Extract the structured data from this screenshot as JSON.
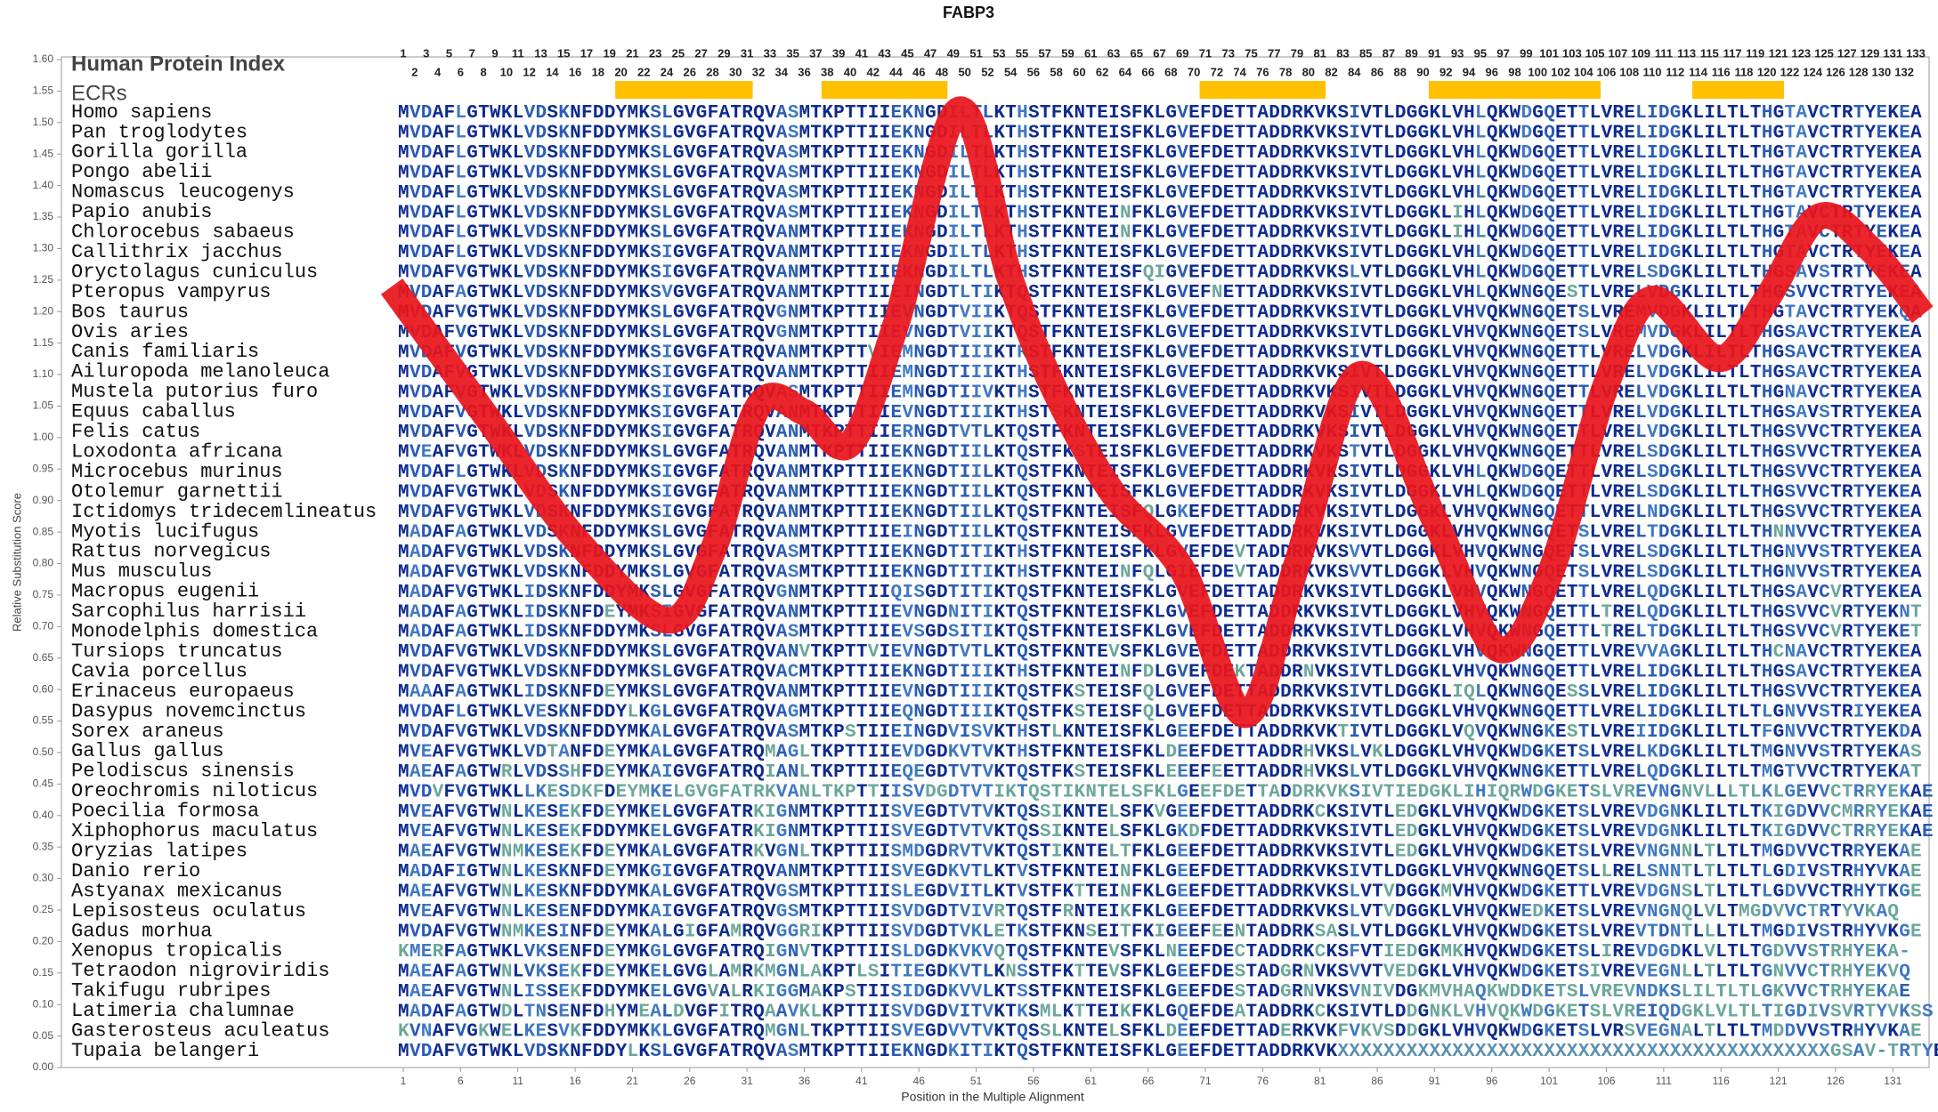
{
  "chart_data": {
    "type": "line",
    "title": "FABP3",
    "index_label": "Human Protein Index",
    "ecr_label": "ECRs",
    "xlabel": "Position in the Multiple Alignment",
    "ylabel": "Relative Substitution Score",
    "color": "#e8141c",
    "ecr_color": "#ffc000",
    "ylim": [
      0,
      1.6
    ],
    "yticks": [
      {
        "value": 0,
        "label": "0.00"
      },
      {
        "value": 0.05,
        "label": "0.05"
      },
      {
        "value": 0.1,
        "label": "0.10"
      },
      {
        "value": 0.15,
        "label": "0.15"
      },
      {
        "value": 0.2,
        "label": "0.20"
      },
      {
        "value": 0.25,
        "label": "0.25"
      },
      {
        "value": 0.3,
        "label": "0.30"
      },
      {
        "value": 0.35,
        "label": "0.35"
      },
      {
        "value": 0.4,
        "label": "0.40"
      },
      {
        "value": 0.45,
        "label": "0.45"
      },
      {
        "value": 0.5,
        "label": "0.50"
      },
      {
        "value": 0.55,
        "label": "0.55"
      },
      {
        "value": 0.6,
        "label": "0.60"
      },
      {
        "value": 0.65,
        "label": "0.65"
      },
      {
        "value": 0.7,
        "label": "0.70"
      },
      {
        "value": 0.75,
        "label": "0.75"
      },
      {
        "value": 0.8,
        "label": "0.80"
      },
      {
        "value": 0.85,
        "label": "0.85"
      },
      {
        "value": 0.9,
        "label": "0.90"
      },
      {
        "value": 0.95,
        "label": "0.95"
      },
      {
        "value": 1,
        "label": "1.00"
      },
      {
        "value": 1.05,
        "label": "1.05"
      },
      {
        "value": 1.1,
        "label": "1.10"
      },
      {
        "value": 1.15,
        "label": "1.15"
      },
      {
        "value": 1.2,
        "label": "1.20"
      },
      {
        "value": 1.25,
        "label": "1.25"
      },
      {
        "value": 1.3,
        "label": "1.30"
      },
      {
        "value": 1.35,
        "label": "1.35"
      },
      {
        "value": 1.4,
        "label": "1.40"
      },
      {
        "value": 1.45,
        "label": "1.45"
      },
      {
        "value": 1.5,
        "label": "1.50"
      },
      {
        "value": 1.55,
        "label": "1.55"
      },
      {
        "value": 1.6,
        "label": "1.60"
      }
    ],
    "xlim": [
      1,
      133
    ],
    "xticks": [
      1,
      6,
      11,
      16,
      21,
      26,
      31,
      36,
      41,
      46,
      51,
      56,
      61,
      66,
      71,
      76,
      81,
      86,
      91,
      96,
      101,
      106,
      111,
      116,
      121,
      126,
      131
    ],
    "columns": [
      1,
      2,
      3,
      4,
      5,
      6,
      7,
      8,
      9,
      10,
      11,
      12,
      13,
      14,
      15,
      16,
      17,
      18,
      19,
      20,
      21,
      22,
      23,
      24,
      25,
      26,
      27,
      28,
      29,
      30,
      31,
      32,
      33,
      34,
      35,
      36,
      37,
      38,
      39,
      40,
      41,
      42,
      43,
      44,
      45,
      46,
      47,
      48,
      49,
      50,
      51,
      52,
      53,
      54,
      55,
      56,
      57,
      58,
      59,
      60,
      61,
      62,
      63,
      64,
      65,
      66,
      67,
      68,
      69,
      70,
      71,
      72,
      73,
      74,
      75,
      76,
      77,
      78,
      79,
      80,
      81,
      82,
      83,
      84,
      85,
      86,
      87,
      88,
      89,
      90,
      91,
      92,
      93,
      94,
      95,
      96,
      97,
      98,
      99,
      100,
      101,
      102,
      103,
      104,
      105,
      106,
      107,
      108,
      109,
      110,
      111,
      112,
      113,
      114,
      115,
      116,
      117,
      118,
      119,
      120,
      121,
      122,
      123,
      124,
      125,
      126,
      127,
      128,
      129,
      130,
      131,
      132,
      133
    ],
    "ecrs": [
      {
        "start": 20,
        "end": 31
      },
      {
        "start": 38,
        "end": 48
      },
      {
        "start": 71,
        "end": 81
      },
      {
        "start": 91,
        "end": 105
      },
      {
        "start": 114,
        "end": 121
      }
    ],
    "x": [
      0,
      8,
      16,
      24,
      28,
      32,
      36,
      40,
      44,
      49.5,
      54,
      58,
      63,
      69,
      74.5,
      79,
      84.5,
      91,
      96.5,
      101,
      106,
      110,
      115.8,
      120,
      124.5,
      129,
      133.6
    ],
    "values": [
      1.24,
      1.04,
      0.84,
      0.71,
      0.82,
      1.05,
      1.04,
      0.99,
      1.18,
      1.52,
      1.25,
      1.07,
      0.91,
      0.79,
      0.56,
      0.8,
      1.1,
      0.87,
      0.665,
      0.78,
      1.085,
      1.22,
      1.125,
      1.22,
      1.35,
      1.3,
      1.195
    ],
    "species": [
      "Homo sapiens",
      "Pan troglodytes",
      "Gorilla gorilla",
      "Pongo abelii",
      "Nomascus leucogenys",
      "Papio anubis",
      "Chlorocebus sabaeus",
      "Callithrix jacchus",
      "Oryctolagus cuniculus",
      "Pteropus vampyrus",
      "Bos taurus",
      "Ovis aries",
      "Canis familiaris",
      "Ailuropoda melanoleuca",
      "Mustela putorius furo",
      "Equus caballus",
      "Felis catus",
      "Loxodonta africana",
      "Microcebus murinus",
      "Otolemur garnettii",
      "Ictidomys tridecemlineatus",
      "Myotis lucifugus",
      "Rattus norvegicus",
      "Mus musculus",
      "Macropus eugenii",
      "Sarcophilus harrisii",
      "Monodelphis domestica",
      "Tursiops truncatus",
      "Cavia porcellus",
      "Erinaceus europaeus",
      "Dasypus novemcinctus",
      "Sorex araneus",
      "Gallus gallus",
      "Pelodiscus sinensis",
      "Oreochromis niloticus",
      "Poecilia formosa",
      "Xiphophorus maculatus",
      "Oryzias latipes",
      "Danio rerio",
      "Astyanax mexicanus",
      "Lepisosteus oculatus",
      "Gadus morhua",
      "Xenopus tropicalis",
      "Tetraodon nigroviridis",
      "Takifugu rubripes",
      "Latimeria chalumnae",
      "Gasterosteus aculeatus",
      "Tupaia belangeri"
    ],
    "sequences": [
      "MVDAFLGTWKLVDSKNFDDYMKSLGVGFATRQVASMTKPTTIIEKNGDILTLKTHSTFKNTEISFKLGVEFDETTADDRKVKSIVTLDGGKLVHLQKWDGQETTLVRELIDGKLILTLTHGTAVCTRTYEKEA",
      "MVDAFLGTWKLVDSKNFDDYMKSLGVGFATRQVASMTKPTTIIEKNGDILTLKTHSTFKNTEISFKLGVEFDETTADDRKVKSIVTLDGGKLVHLQKWDGQETTLVRELIDGKLILTLTHGTAVCTRTYEKEA",
      "MVDAFLGTWKLVDSKNFDDYMKSLGVGFATRQVASMTKPTTIIEKNGDILTLKTHSTFKNTEISFKLGVEFDETTADDRKVKSIVTLDGGKLVHLQKWDGQETTLVRELIDGKLILTLTHGTAVCTRTYEKEA",
      "MVDAFLGTWKLVDSKNFDDYMKSLGVGFATRQVASMTKPTTIIEKNGDILTLKTHSTFKNTEISFKLGVEFDETTADDRKVKSIVTLDGGKLVHLQKWDGQETTLVRELIDGKLILTLTHGTAVCTRTYEKEA",
      "MVDAFLGTWKLVDSKNFDDYMKSLGVGFATRQVASMTKPTTIIEKNGDILTLKTHSTFKNTEISFKLGVEFDETTADDRKVKSIVTLDGGKLVHLQKWDGQETTLVRELIDGKLILTLTHGTAVCTRTYEKEA",
      "MVDAFLGTWKLVDSKNFDDYMKSLGVGFATRQVASMTKPTTIIEKNGDILTLKTHSTFKNTEINFKLGVEFDETTADDRKVKSIVTLDGGKLIHLQKWDGQETTLVRELIDGKLILTLTHGTAVCTRTYEKEA",
      "MVDAFLGTWKLVDSKNFDDYMKSLGVGFATRQVANMTKPTTIIEKNGDILTLKTHSTFKNTEINFKLGVEFDETTADDRKVKSIVTLDGGKLIHLQKWDGQETTLVRELIDGKLILTLTHGTAVCTRTYEKEA",
      "MVDAFLGTWKLVDSKNFDDYMKSIGVGFATRQVANMTKPTTIIEKNGDILTLKTHSTFKNTEISFKLGVEFDETTADDRKVKSIVTLDGGKLVHLQKWDGQETTLVRELIDGKLILTLTHGTAVCTRTYEKEA",
      "MVDAFVGTWKLVDSKNFDDYMKSIGVGFATRQVANMTKPTTIIEKNGDILTLKTHSTFKNTEISFQIGVEFDETTADDRKVKSLVTLDGGKLVHLQKWDGQETTLVRELSDGKLILTLTHGSAVSTRTYEKEA",
      "MVDAFAGTWKLVDSKNFDDYMKSVGVGFATRQVANMTKPTTIIEINGDTLTIKTQSTFKNTEISFKLGVEFNETTADDRKVKSIVTLDGGKLVHLQKWNGQESTLVRELVDGKLILTLTHGSVVCTRTYEKEA",
      "MVDAFVGTWKLVDSKNFDDYMKSLGVGFATRQVGNMTKPTTIIEVNGDTVIIKTQSTFKNTEISFKLGVEFDETTADDRKVKSIVTLDGGKLVHVQKWNGQETSLVREMVDGKLILTLTHGTAVCTRTYEKQA",
      "MVDAFVGTWKLVDSKNFDDYMKSLGVGFATRQVGNMTKPTTIIEVNGDTVIIKTQSTFKNTEISFKLGVEFDETTADDRKVKSIVTLDGGKLVHVQKWNGQETSLVREMVDGKLILTLTHGSAVCTRTYEKEA",
      "MVDAFVGTWKLVDSKNFDDYMKSIGVGFATRQVANMTKPTTVIEMNGDTIIIKTRSTFKNTEISFKLGVEFDETTADDRKVKSIVTLDGGKLVHVQKWNGQETTLVRELVDGKLILTLTHGSAVCTRTYEKEA",
      "MVDAFVGTWKLVDSKNFDDYMKSIGVGFATRQVANMTKPTTIIEMNGDTIIIKTHSTFKNTEISFKLGVEFDETTADDRKVKSIVTLDGGKLVHVQKWNGQETTLVRELVDGKLILTLTHGSAVCTRTYEKEA",
      "MVDAFVGTWKLVDSKNFDDYMKSIGVGFATRQVASMTKPTTIIEMNGDTIIVKTHSTFKNTEISFKLGVEFDETTADDRKVKSIVTLDGGKLVHVQKWNGQETTLVRELVDGKLILTLTHGNAVCTRTYEKEA",
      "MVDAFVGTWKLVDSKNFDDYMKSIGVGFATRQVANMTKPTTIIEVNGDTIIIKTHSTSKNTEISFKLGVEFDETTADDRKVKSIVTLDGGKLVHVQKWNGQETTLVRELVDGKLILTLTHGSAVSTRTYEKEA",
      "MVDAFVGTWKLVDSKNFDDYMKSIGVGFATRQVANMTKPTTIIERNGDTVTLKTQSTFKNTEISFKLGVEFDETTADDRKVKSIVTLDGGKLVHVQKWNGQETTLVRELVDGKLILTLTHGSVVCTRTYEKEA",
      "MVEAFVGTWKLVDSKNFDDYMKSLGVGFATRQVANMTKPTTIIEKNGDTIILKTQSTFKSTEISFKLGVEFDETTADDRKVKSTVTLDGGKLVHVQKWNGQETTLVRELSDGKLILTLTHGSVVCTRTYEKEA",
      "MVDAFLGTWKLVDSKNFDDYMKSIGVGFATRQVANMTKPTTIIEKNGDTIILKTQSTFKNTEISFKLGVEFDETTADDRKVKSIVTLDGGKLVHLQKWDGQETTLVRELSDGKLILTLTHGSVVCTRTYEKEA",
      "MVDAFVGTWKLVDSKNFDDYMKSIGVGFATRQVANMTKPTTIIEKNGDTIILKTQSTFKNTEISFKLGVEFDETTADDRKVKSIVTLDGGKLVHLQKWDGQETTLVRELSDGKLILTLTHGSVVCTRTYEKEA",
      "MVDAFVGTWKLVDSKNFDDYMKSIGVGFATRQVANMTKPTTIIEKNGDTIILKTQSTFKNTEISFQLGKEFDETTADDRKVKSIVTLDGGKLVHVQKWNGQETTLVRELNDGKLILTLTHGSVVCTRTYEKEA",
      "MADAFAGTWKLVDSKNFDDYMKSLGVGFATRQVANMTKPTTIIEINGDTIILKTQSTFKNTEISFKLGVEFDETTADDRKVKSIVTLDGGKLVHVQKWNGQETSLVRELTDGKLILTLTHNNVVCTRTYEKEA",
      "MADAFVGTWKLVDSKNFDDYMKSLGVGFATRQVASMTKPTTIIEKNGDTITIKTHSTFKNTEISFKLGVEFDEVTADDRKVKSVVTLDGGKLVHVQKWNGQETSLVRELSDGKLILTLTHGNVVSTRTYEKEA",
      "MADAFVGTWKLVDSKNFDDYMKSLGVGFATRQVASMTKPTTIIEKNGDTITIKTHSTFKNTEINFQLGIEFDEVTADDRKVKSVVTLDGGKLVHVQKWNGQETSLVRELSDGKLILTLTHGNVVSTRTYEKEA",
      "MADAFVGTWKLIDSKNFDDYMKSLGVGFATRQVGNMTKPTTIIQISGDTITIKTQSTFKNTEISFKLGVEFDETTADDRKVKSIVTLDGGKLVHVQKWNGQETTLVRELQDGKLILTLTHGSAVCVRTYEKEA",
      "MADAFAGTWKLIDSKNFDEYMKSIGVGFATRQVANMTKPTTIIEVNGDNITIKTQSTFKNTEISFKLGVEFDETTADDRKVKSIVTLDGGKLVHVQKWNGQETTLTRELQDGKLILTLTHGSVVCVRTYEKNT",
      "MADAFAGTWKLIDSKNFDDYMKSLGVGFATRQVASMTKPTTIIEVSGDSITIKTQSTFKNTEISFKLGVEFDETTADDRKVKSIVTLDGGKLVHVQKWNGQETTLTRELTDGKLILTLTHGSVVCVRTYEKET",
      "MVDAFVGTWKLVDSKNFDDYMKSLGVGFATRQVANVTKPTTVIEVNGDTVTLKTQSTFKNTEVSFKLGVEFDETTADDRKVKSIVTLDGGKLVHVQKWNGQETTLVREVVAGKLILTLTHCNAVCTRTYEKEA",
      "MVDAFVGTWKLVDSKNFDDYMKSLGVGFATRQVACMTKPTTIIEKNGDTIIIKTHSTFKNTEINFDLGVEFDEKTADDRNVKSIVTLDGGKLVHVQKWNGQETTLVRELIDGKLILTLTHGSAVCTRTYEKEA",
      "MAAAFAGTWKLIDSKNFDEYMKSLGVGFATRQVANMTKPTTIIEVNGDTIIIKTQSTFKSTEISFQLGVEFDETTADDRKVKSIVTLDGGKLIQLQKWNGQESSLVRELIDGKLILTLTHGSVVCTRTYEKEA",
      "MVDAFLGTWKLVESKNFDDYLKGLGVGFATRQVAGMTKPTTIIEQNGDTIIIKTQSTFKSTEISFQLGVEFDETTADDRKVKSIVTLDGGKLVHVQKWNGQETTLVRELIDGKLILTLTLGNVVSTRIYEKEA",
      "MVDAFVGTWKLVDSKNFDDYMKALGVGFATRQVASMTKPSTIIEINGDVISVKTHSTLKNTEISFKLGEEFDETTADDRKVKTIVTLDGGKLVQVQKWNGKESTLVREIIDGKLILTLTFGNVVCTRTYEKDA",
      "MVEAFVGTWKLVDTANFDEYMKALGVGFATRQMAGLTKPTTIIEVDGDKVTVKTHSTFKNTEISFKLDEEFDETTADDRHVKSLVKLDGGKLVHVQKWDGKETSLVRELKDGKLILTLTMGNVVSTRTYEKAS",
      "MAEAFAGTWRLVDSSHFDEYMKAIGVGFATRQIANLTKPTTIIEQEGDTVTVKTQSTFKSTEISFKLEEEFEETTADDRHVKSLVTLDGGKLVHVQKWNGKETTLVRELQDGKLILTLTMGTVVCTRTYEKAT",
      "MVDVFVGTWKLLKESDKFDEYMKELGVGFATRKVANLTKPTTIISVDGDTVTIKTQSTIKNTELSFKLGEEFDETTADDRKVKSIVTIEDGKLIHIQRWDGKETSLVREVNGNVLLLTLKLGEVVCTRRYEKAE",
      "MVEAFVGTWNLKESEKFDEYMKELGVGFATRKIGNMTKPTTIISVEGDTVTVKTQSSIKNTELSFKVGEEFDETTADDRKCKSIVTLEDGKLVHVQKWDGKETSLVREVDGNKLILTLTKIGDVVCMRRYEKAE",
      "MVEAFVGTWNLKESEKFDDYMKELGVGFATRKIGNMTKPTTIISVEGDTVTVKTQSSIKNTELSFKLGKDFDETTADDRKVKSIVTLEDGKLVHVQKWDGKETSLVREVDGNKLILTLTKIGDVVCTRRYEKAE",
      "MAEAFVGTWNMKESEKFDEYMKALGVGFATRKVGNLTKPTTIISMDGDRVTVKTQSTIKNTELTFKLGEEFDETTADDRKVKSIVTLEDGKLVHVQKWDGKETSLVREVNGNNLTLTLTMGDVVCTRRYEKAE",
      "MADAFIGTWNLKESKNFDEYMKGIGVGFATRQVANMTKPTTIISVEGDKVTLKTVSTFKNTEINFKLGEEFDETTADDRKVKSIVTLDGGKLVHVQKWNGQETSLLRELSNNTLTLTLTLGDIVSTRHYVKAE",
      "MAEAFVGTWNLKESKNFDDYMKALGVGFATRQVGSMTKPTTIISLEGDVITLKTVSTFKTTEINFKLGEEFDETTADDRKVKSLVTVDGGKMVHVQKWDGKETTLVREVDGNSLTLTLTLGDVVCTRHYTKGE",
      "MVEAFVGTWNLKESENFDDYMKAIGVGFATRQVGSMTKPTTIISVDGDTVIVRTQSTFRNTEIKFKLGEEFDETTADDRKVKSLVTVDGGKLVHVQKWEDKETSLVREVNGNQLVLTMGDVVCTRTYVKAQ",
      "MVDAFVGTWNMKESINFDEYMKALGIGFAMRQVGGRIKPTTIISVDGDTVKLETKSTFKNSEITFKIGEEFEENTADDRKSASLVTLDGGKLVHVQKWDGKETSLVREVTDNTLLLTLTMGDIVSTRHYVKGE",
      "KMERFAGTWKLVKSENFDEYMKGLGVGFATRQIGNVTKPTTIISLDGDKVKVQTQSTFKNTEVSFKLNEEFDECTADDRKCKSFVTIEDGKMKHVQKWDGKETSLIREVDGDKLVLTLTGDVVSTRHYEKA-",
      "MAEAFAGTWNLVKSEKFDEYMKELGVGLAMRKMGNLAKPTLSITIEGDKVTLKNSSTFKTTEVSFKLGEEFDESTADGRNVKSVVTVEDGKLVHVQKWDGKETSIVREVEGNLLTLTLTGNVVCTRHYEKVQ",
      "MAEAFVGTWNLISSEKFDDYMKELGVGVALRKIGGMAKPSTIISIDGDKVVLKTSSTFKNTEISFKLGEEFDESTADGRNVKSVNIVDGKMVHAQKWDDKETSLVREVNDKSLILTLTLGKVVCTRHYEKAE",
      "MADAFAGTWDLTNSENFDHYMEALDVGFITRQAAVKLKPTTIISVDGDVITVKTKSMLKTTEIKFKLGQEFDEATADDRKCKSIVTLDDGNKLVHVQKWDGKETSLVREIQDGKLVLTLTIGDIVSVRTYVKSS",
      "KVNAFVGKWELKESVKFDDYMKKLGVGFATRQMGNLTKPTTIISVEGDVVTVKTQSSLKNTELSFKLDEEFDETTADERKVKFVKVSDDGKLVHVQKWDGKETSLVRSVEGNALTLTLTMDDVVSTRHYVKAE",
      "MVDAFVGTWKLVDSKNFDDYLKSLGVGFATRQVASMTKPTTIIEKNGDKITIKTQSTFKNTEISFKLGEEFDETTADDRKVKXXXXXXXXXXXXXXXXXXXXXXXXXXXXXXXXXXXXXXXXXXXGSAV-TRTYEREA"
    ]
  }
}
